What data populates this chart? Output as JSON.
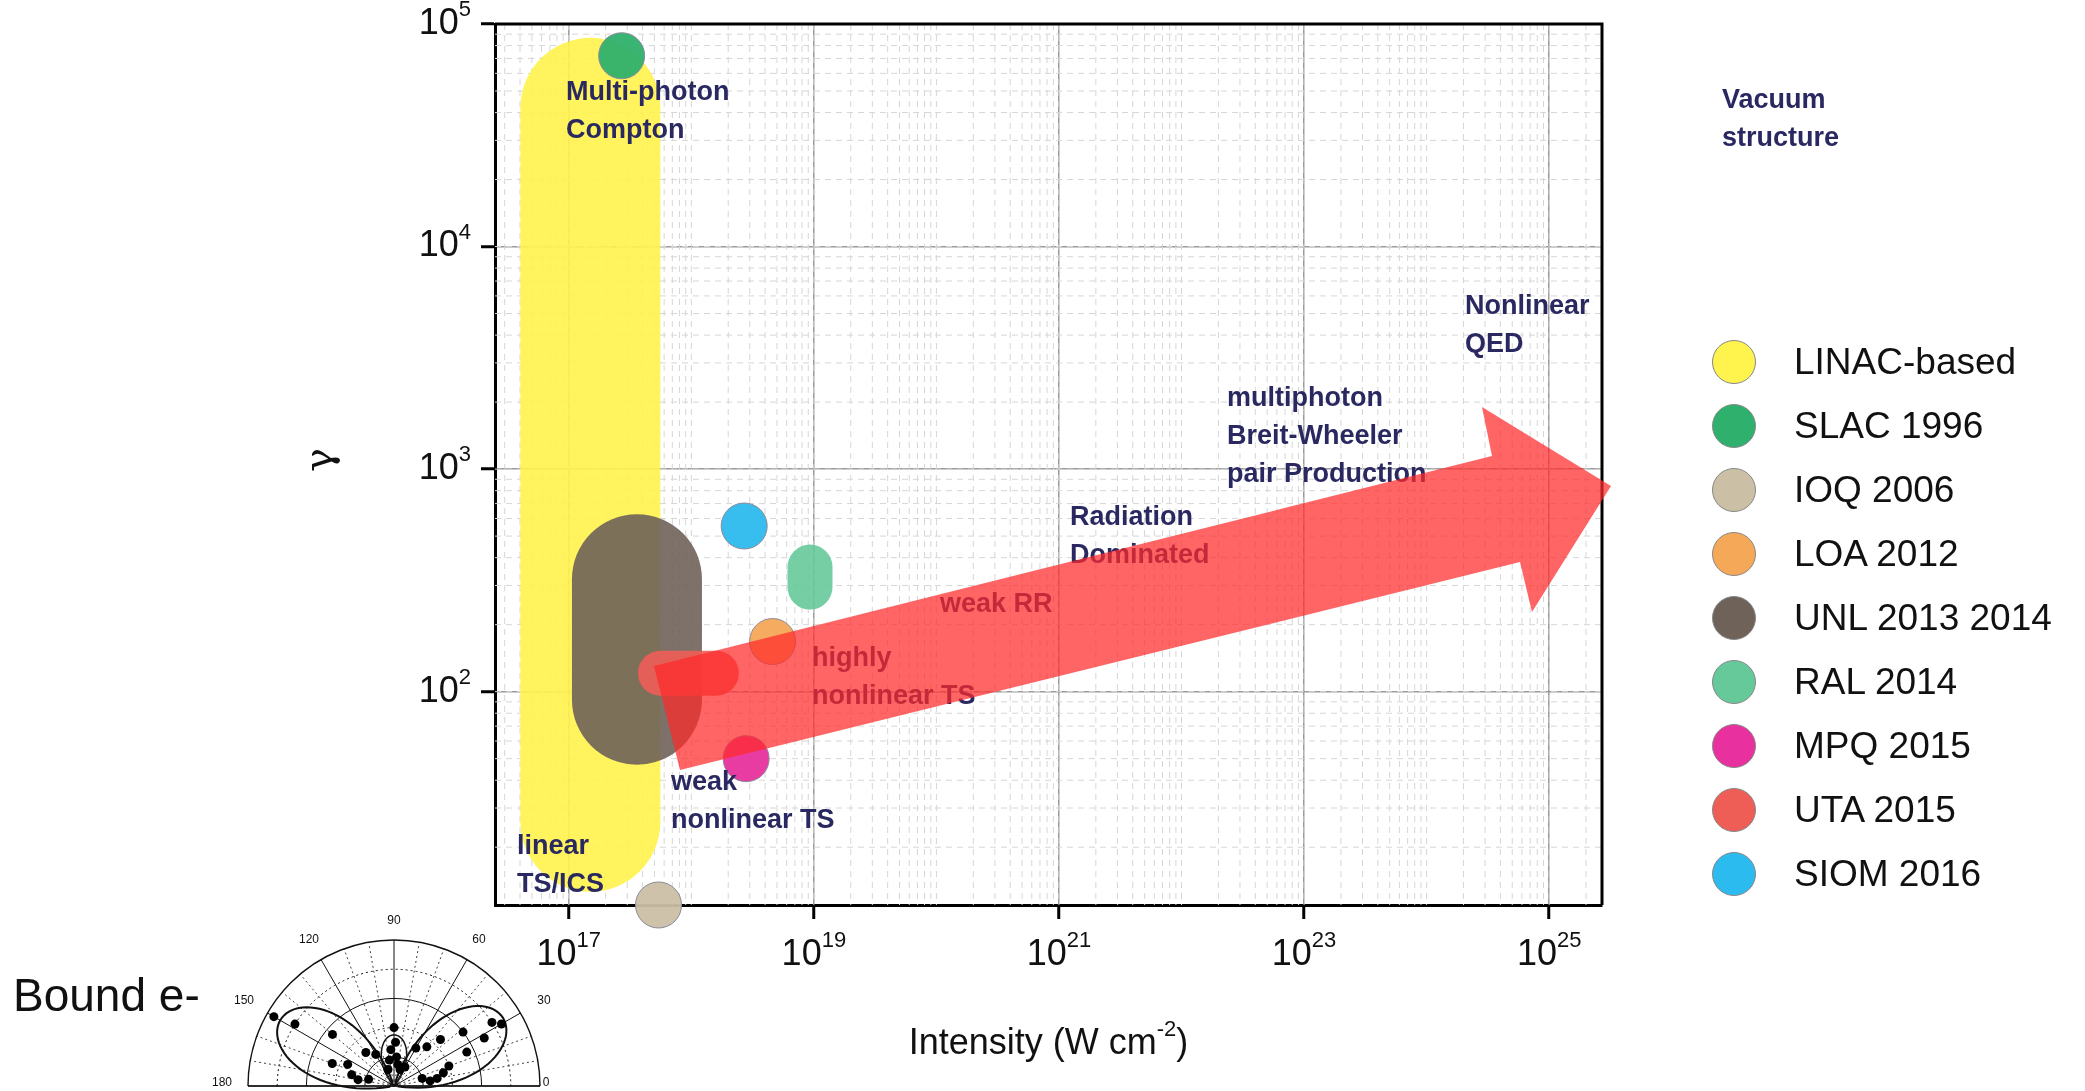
{
  "chart_data": {
    "type": "scatter",
    "xlabel": "Intensity (W cm$^{-2}$)",
    "ylabel": "γ",
    "log": "xy",
    "grid": true,
    "legend": "right",
    "marker": "circle",
    "xlim": [
      2.5e+16,
      2.7e+25
    ],
    "xticks": [
      {
        "value": 1e+17,
        "label": "10$^{17}$"
      },
      {
        "value": 1e+19,
        "label": "10$^{19}$"
      },
      {
        "value": 1e+21,
        "label": "10$^{21}$"
      },
      {
        "value": 1e+23,
        "label": "10$^{23}$"
      },
      {
        "value": 1e+25,
        "label": "10$^{25}$"
      }
    ],
    "ylim": [
      11,
      100000
    ],
    "yticks": [
      {
        "value": 100,
        "label": "10$^{2}$"
      },
      {
        "value": 1000,
        "label": "10$^{3}$"
      },
      {
        "value": 10000,
        "label": "10$^{4}$"
      },
      {
        "value": 100000,
        "label": "10$^{5}$"
      }
    ],
    "series": [
      {
        "name": "LINAC-based",
        "type": "line",
        "marker": "none",
        "color": "#fff34d",
        "x": [
          1.5e+17,
          1.5e+17
        ],
        "values": [
          26,
          42000
        ]
      },
      {
        "name": "SLAC 1996",
        "type": "scatter",
        "color": "#2fb06c",
        "x": [
          2.7e+17
        ],
        "values": [
          72000
        ]
      },
      {
        "name": "IOQ 2006",
        "type": "scatter",
        "color": "#cbbfa5",
        "x": [
          5.4e+17
        ],
        "values": [
          11
        ]
      },
      {
        "name": "LOA 2012",
        "type": "scatter",
        "color": "#f5a857",
        "x": [
          4.6e+18
        ],
        "values": [
          168
        ]
      },
      {
        "name": "UNL 2013 2014",
        "type": "line",
        "marker": "none",
        "color": "#6f6259",
        "x": [
          3.6e+17,
          3.6e+17
        ],
        "values": [
          92,
          320
        ]
      },
      {
        "name": "RAL 2014",
        "type": "line",
        "marker": "none",
        "color": "#66c99a",
        "x": [
          9.3e+18,
          9.3e+18
        ],
        "values": [
          295,
          363
        ]
      },
      {
        "name": "MPQ 2015",
        "type": "scatter",
        "color": "#e8319e",
        "x": [
          2.8e+18
        ],
        "values": [
          50
        ]
      },
      {
        "name": "UTA 2015",
        "type": "line",
        "marker": "none",
        "color": "#ee5d56",
        "x": [
          5.6e+17,
          1.6e+18
        ],
        "values": [
          121,
          121
        ]
      },
      {
        "name": "SIOM 2016",
        "type": "scatter",
        "color": "#2cbbee",
        "x": [
          2.7e+18
        ],
        "values": [
          555
        ]
      }
    ],
    "annotations": [
      "Multi-photon\nCompton",
      "Vacuum\nstructure",
      "Nonlinear\nQED",
      "multiphoton\nBreit-Wheeler\npair Production",
      "Radiation\nDominated",
      "weak RR",
      "highly\nnonlinear TS",
      "weak\nnonlinear TS",
      "linear\nTS/ICS",
      "Bound e-",
      "90",
      "120",
      "60",
      "150",
      "30",
      "180",
      "0"
    ]
  }
}
